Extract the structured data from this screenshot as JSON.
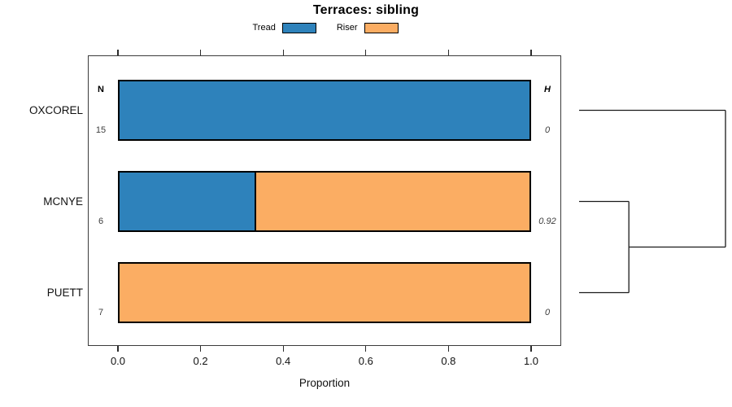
{
  "figure": {
    "colors": {
      "tread": "#2E82BB",
      "riser": "#FBAD63",
      "bar_border": "#000000",
      "box_border": "#3b3b3b",
      "line": "#1a1a1a",
      "text": "#111111",
      "muted_text": "#3d3d3d"
    },
    "legend": [
      {
        "label": "Tread",
        "color_key": "tread"
      },
      {
        "label": "Riser",
        "color_key": "riser"
      }
    ]
  },
  "chart_data": {
    "type": "bar",
    "subtype": "horizontal-stacked-proportion-with-dendrogram",
    "title": "Terraces: sibling",
    "xlabel": "Proportion",
    "xlim": [
      0,
      1
    ],
    "x_ticks": [
      {
        "label": "0.0",
        "value": 0.0
      },
      {
        "label": "0.2",
        "value": 0.2
      },
      {
        "label": "0.4",
        "value": 0.4
      },
      {
        "label": "0.6",
        "value": 0.6
      },
      {
        "label": "0.8",
        "value": 0.8
      },
      {
        "label": "1.0",
        "value": 1.0
      }
    ],
    "grid": false,
    "legend_position": "top-center",
    "series_names": [
      "Tread",
      "Riser"
    ],
    "columns": {
      "left_header": "N",
      "right_header": "H"
    },
    "rows": [
      {
        "label": "OXCOREL",
        "n": "15",
        "h": "0",
        "tread": 1.0,
        "riser": 0.0
      },
      {
        "label": "MCNYE",
        "n": "6",
        "h": "0.92",
        "tread": 0.333,
        "riser": 0.667
      },
      {
        "label": "PUETT",
        "n": "7",
        "h": "0",
        "tread": 0.0,
        "riser": 1.0
      }
    ],
    "dendrogram": {
      "leaf_order": [
        "OXCOREL",
        "MCNYE",
        "PUETT"
      ],
      "merges": [
        {
          "members": [
            "MCNYE",
            "PUETT"
          ],
          "key": "MCNYE+PUETT",
          "rel_height": 0.34
        },
        {
          "members": [
            "OXCOREL",
            "MCNYE+PUETT"
          ],
          "key": "ROOT",
          "rel_height": 1.0
        }
      ]
    }
  }
}
